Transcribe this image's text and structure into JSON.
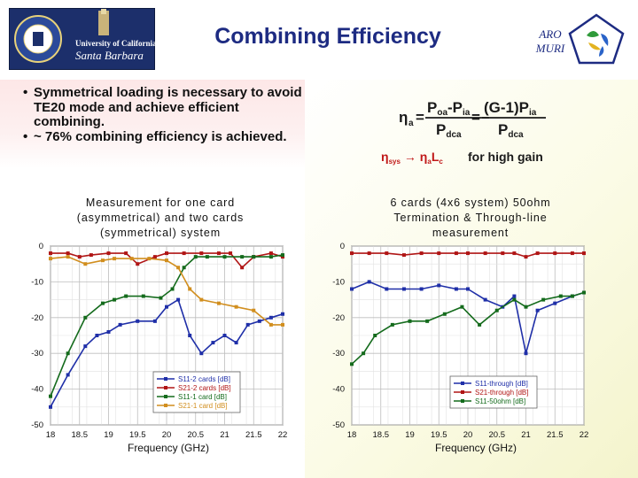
{
  "header": {
    "title": "Combining Efficiency",
    "logo_line1": "University of California",
    "logo_line2": "Santa Barbara",
    "aro_line1": "ARO",
    "aro_line2": "MURI"
  },
  "bullets": [
    "Symmetrical loading is necessary to avoid TE20 mode and achieve efficient combining.",
    "~ 76% combining efficiency is achieved."
  ],
  "equation": {
    "eta_a": "η",
    "eta_sub": "a",
    "eq": "=",
    "num1": "P",
    "num1_sub": "oa",
    "num1_mid": "-P",
    "num1_sub2": "ia",
    "den1": "P",
    "den1_sub": "dca",
    "num2": "(G-1)P",
    "num2_sub": "ia",
    "den2": "P",
    "den2_sub": "dca",
    "line2_a": "η",
    "line2_a_sub": "sys",
    "line2_arrow": "→ η",
    "line2_b_sub": "a",
    "line2_c": "L",
    "line2_c_sub": "c",
    "line2_d": "for high gain"
  },
  "captions": {
    "left": "Measurement for one card (asymmetrical) and two cards (symmetrical) system",
    "right": "6 cards (4x6 system) 50ohm Termination & Through-line measurement",
    "left_xlabel": "Frequency (GHz)",
    "right_xlabel": "Frequency (GHz)"
  },
  "chart_data": [
    {
      "type": "line",
      "title": "",
      "xlabel": "Frequency (GHz)",
      "ylabel": "",
      "xlim": [
        18,
        22
      ],
      "ylim": [
        -50,
        0
      ],
      "x_ticks": [
        "18",
        "18.5",
        "19",
        "19.5",
        "20",
        "20.5",
        "21",
        "21.5",
        "22"
      ],
      "y_ticks": [
        "0",
        "-10",
        "-20",
        "-30",
        "-40",
        "-50"
      ],
      "grid": true,
      "legend": "bottom-center",
      "series": [
        {
          "name": "S11-2 cards [dB]",
          "color": "#1f2fa8",
          "x": [
            18,
            18.3,
            18.6,
            18.8,
            19.0,
            19.2,
            19.5,
            19.8,
            20.0,
            20.2,
            20.4,
            20.6,
            20.8,
            21.0,
            21.2,
            21.4,
            21.6,
            21.8,
            22.0
          ],
          "y": [
            -45,
            -36,
            -28,
            -25,
            -24,
            -22,
            -21,
            -21,
            -17,
            -15,
            -25,
            -30,
            -27,
            -25,
            -27,
            -22,
            -21,
            -20,
            -19
          ]
        },
        {
          "name": "S21-2 cards [dB]",
          "color": "#b01515",
          "x": [
            18,
            18.3,
            18.5,
            18.7,
            19.0,
            19.3,
            19.5,
            19.8,
            20.0,
            20.3,
            20.6,
            20.9,
            21.1,
            21.3,
            21.5,
            21.8,
            22.0
          ],
          "y": [
            -2,
            -2,
            -3,
            -2.5,
            -2,
            -2,
            -5,
            -3,
            -2,
            -2,
            -2,
            -2,
            -2,
            -6,
            -3,
            -2,
            -3
          ]
        },
        {
          "name": "S11-1 card [dB]",
          "color": "#146b1c",
          "x": [
            18,
            18.3,
            18.6,
            18.9,
            19.1,
            19.3,
            19.6,
            19.9,
            20.1,
            20.3,
            20.5,
            20.7,
            21.0,
            21.3,
            21.5,
            21.8,
            22.0
          ],
          "y": [
            -42,
            -30,
            -20,
            -16,
            -15,
            -14,
            -14,
            -14.5,
            -12,
            -6,
            -3,
            -3,
            -3,
            -3,
            -3,
            -3,
            -2.5
          ]
        },
        {
          "name": "S21-1 card [dB]",
          "color": "#d18e1e",
          "x": [
            18,
            18.3,
            18.6,
            18.9,
            19.1,
            19.4,
            19.7,
            20.0,
            20.2,
            20.4,
            20.6,
            20.9,
            21.2,
            21.5,
            21.8,
            22.0
          ],
          "y": [
            -3.5,
            -3,
            -5,
            -4,
            -3.5,
            -3.5,
            -3.5,
            -4,
            -6,
            -12,
            -15,
            -16,
            -17,
            -18,
            -22,
            -22
          ]
        }
      ]
    },
    {
      "type": "line",
      "title": "",
      "xlabel": "Frequency (GHz)",
      "ylabel": "",
      "xlim": [
        18,
        22
      ],
      "ylim": [
        -50,
        0
      ],
      "x_ticks": [
        "18",
        "18.5",
        "19",
        "19.5",
        "20",
        "20.5",
        "21",
        "21.5",
        "22"
      ],
      "y_ticks": [
        "0",
        "-10",
        "-20",
        "-30",
        "-40",
        "-50"
      ],
      "grid": true,
      "legend": "bottom-right",
      "series": [
        {
          "name": "S11-through [dB]",
          "color": "#1f2fa8",
          "x": [
            18,
            18.3,
            18.6,
            18.9,
            19.2,
            19.5,
            19.8,
            20.0,
            20.3,
            20.6,
            20.8,
            21.0,
            21.2,
            21.5,
            21.8,
            22.0
          ],
          "y": [
            -12,
            -10,
            -12,
            -12,
            -12,
            -11,
            -12,
            -12,
            -15,
            -17,
            -14,
            -30,
            -18,
            -16,
            -14,
            -13
          ]
        },
        {
          "name": "S21-through [dB]",
          "color": "#b01515",
          "x": [
            18,
            18.3,
            18.6,
            18.9,
            19.2,
            19.5,
            19.8,
            20.0,
            20.3,
            20.6,
            20.8,
            21.0,
            21.2,
            21.5,
            21.8,
            22.0
          ],
          "y": [
            -2,
            -2,
            -2,
            -2.5,
            -2,
            -2,
            -2,
            -2,
            -2,
            -2,
            -2,
            -3,
            -2,
            -2,
            -2,
            -2
          ]
        },
        {
          "name": "S11-50ohm [dB]",
          "color": "#146b1c",
          "x": [
            18,
            18.2,
            18.4,
            18.7,
            19.0,
            19.3,
            19.6,
            19.9,
            20.2,
            20.5,
            20.8,
            21.0,
            21.3,
            21.6,
            21.8,
            22.0
          ],
          "y": [
            -33,
            -30,
            -25,
            -22,
            -21,
            -21,
            -19,
            -17,
            -22,
            -18,
            -15,
            -17,
            -15,
            -14,
            -14,
            -13
          ]
        }
      ]
    }
  ]
}
